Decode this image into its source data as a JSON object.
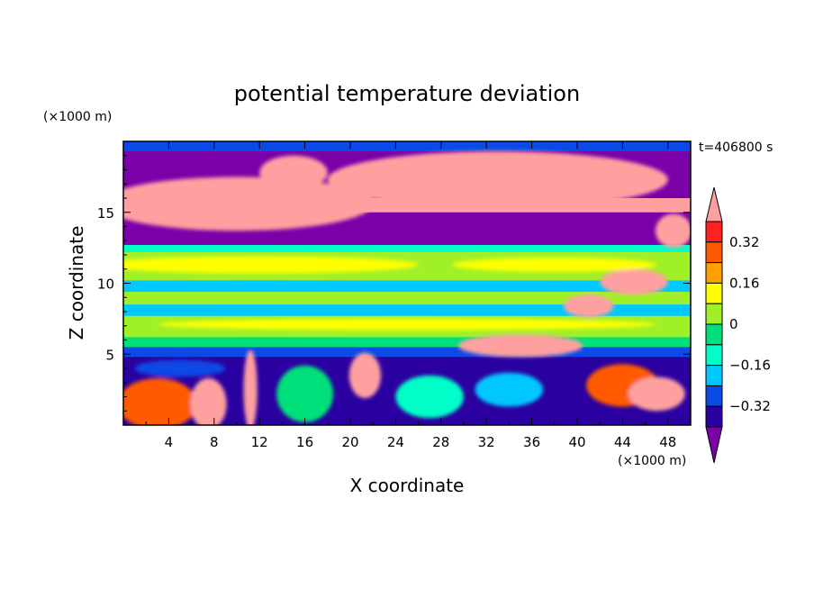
{
  "chart_data": {
    "type": "heatmap",
    "title": "potential temperature deviation",
    "xlabel": "X coordinate",
    "ylabel": "Z coordinate",
    "x_unit": "(×1000 m)",
    "y_unit": "(×1000 m)",
    "time_label": "t=406800 s",
    "xlim": [
      0,
      50
    ],
    "ylim": [
      0,
      20
    ],
    "x_ticks": [
      4,
      8,
      12,
      16,
      20,
      24,
      28,
      32,
      36,
      40,
      44,
      48
    ],
    "y_ticks": [
      5,
      10,
      15
    ],
    "colorbar": {
      "levels": [
        -0.4,
        -0.32,
        -0.24,
        -0.16,
        -0.08,
        0,
        0.08,
        0.16,
        0.24,
        0.32,
        0.4
      ],
      "labels": [
        "0.32",
        "0.16",
        "0",
        "−0.16",
        "−0.32"
      ],
      "label_values": [
        0.32,
        0.16,
        0,
        -0.16,
        -0.32
      ],
      "colors": [
        "#7a00a8",
        "#2a00a0",
        "#0a4ae6",
        "#00c8ff",
        "#00ffc8",
        "#00e07a",
        "#a0f028",
        "#ffff00",
        "#ffa000",
        "#ff5a00",
        "#ff2020",
        "#ffa0a0"
      ],
      "extend": "both"
    },
    "bands": [
      {
        "z": [
          19.3,
          20
        ],
        "value": -0.3
      },
      {
        "z": [
          16,
          19.3
        ],
        "value": -0.45
      },
      {
        "z": [
          15,
          16
        ],
        "value": 0.4
      },
      {
        "z": [
          12.7,
          15
        ],
        "value": -0.45
      },
      {
        "z": [
          12.2,
          12.7
        ],
        "value": -0.1
      },
      {
        "z": [
          11.2,
          12.2
        ],
        "value": 0.05
      },
      {
        "z": [
          10.2,
          11.2
        ],
        "value": 0.02
      },
      {
        "z": [
          9.4,
          10.2
        ],
        "value": -0.18
      },
      {
        "z": [
          8.5,
          9.4
        ],
        "value": 0.04
      },
      {
        "z": [
          7.7,
          8.5
        ],
        "value": -0.18
      },
      {
        "z": [
          6.2,
          7.7
        ],
        "value": 0.05
      },
      {
        "z": [
          5.5,
          6.2
        ],
        "value": -0.05
      },
      {
        "z": [
          4.8,
          5.5
        ],
        "value": -0.28
      },
      {
        "z": [
          0,
          4.8
        ],
        "value": -0.4
      }
    ],
    "blobs": [
      {
        "cx": 10,
        "cz": 15.6,
        "rx": 12,
        "rz": 1.9,
        "value": 0.45
      },
      {
        "cx": 33,
        "cz": 17.3,
        "rx": 15,
        "rz": 2.0,
        "value": 0.45
      },
      {
        "cx": 15,
        "cz": 17.8,
        "rx": 3,
        "rz": 1.2,
        "value": 0.45
      },
      {
        "cx": 48.5,
        "cz": 13.7,
        "rx": 1.6,
        "rz": 1.2,
        "value": 0.45
      },
      {
        "cx": 45,
        "cz": 10.1,
        "rx": 3,
        "rz": 0.9,
        "value": 0.45
      },
      {
        "cx": 41,
        "cz": 8.4,
        "rx": 2.2,
        "rz": 0.8,
        "value": 0.45
      },
      {
        "cx": 35,
        "cz": 5.6,
        "rx": 5.5,
        "rz": 0.8,
        "value": 0.45
      },
      {
        "cx": 12,
        "cz": 11.3,
        "rx": 14,
        "rz": 0.6,
        "value": 0.12
      },
      {
        "cx": 38,
        "cz": 11.3,
        "rx": 9,
        "rz": 0.5,
        "value": 0.1
      },
      {
        "cx": 25,
        "cz": 7.1,
        "rx": 22,
        "rz": 0.4,
        "value": 0.12
      },
      {
        "cx": 3,
        "cz": 1.5,
        "rx": 3.5,
        "rz": 1.8,
        "value": 0.3
      },
      {
        "cx": 7.5,
        "cz": 1.5,
        "rx": 1.6,
        "rz": 1.8,
        "value": 0.45
      },
      {
        "cx": 11.2,
        "cz": 2.5,
        "rx": 0.6,
        "rz": 2.8,
        "value": 0.45
      },
      {
        "cx": 21.3,
        "cz": 3.5,
        "rx": 1.4,
        "rz": 1.6,
        "value": 0.45
      },
      {
        "cx": 44,
        "cz": 2.8,
        "rx": 3.2,
        "rz": 1.5,
        "value": 0.3
      },
      {
        "cx": 47,
        "cz": 2.2,
        "rx": 2.5,
        "rz": 1.2,
        "value": 0.45
      },
      {
        "cx": 27,
        "cz": 2.0,
        "rx": 3,
        "rz": 1.5,
        "value": -0.15
      },
      {
        "cx": 16,
        "cz": 2.2,
        "rx": 2.5,
        "rz": 2.0,
        "value": -0.08
      },
      {
        "cx": 34,
        "cz": 2.5,
        "rx": 3,
        "rz": 1.2,
        "value": -0.2
      },
      {
        "cx": 5,
        "cz": 4.0,
        "rx": 4,
        "rz": 0.6,
        "value": -0.25
      }
    ]
  }
}
